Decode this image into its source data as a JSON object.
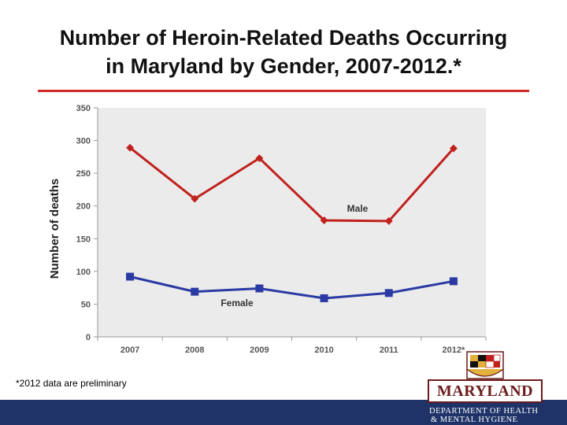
{
  "slide": {
    "title_line1": "Number of Heroin-Related Deaths Occurring",
    "title_line2": "in Maryland by Gender, 2007-2012.*",
    "footnote": "*2012 data are preliminary"
  },
  "logo": {
    "wordmark": "MARYLAND",
    "dept_line1": "DEPARTMENT OF HEALTH",
    "dept_line2": "& MENTAL HYGIENE",
    "colors": {
      "maroon": "#6b1a1a",
      "gold": "#e2b13c",
      "bar": "#1f3368"
    }
  },
  "chart_data": {
    "type": "line",
    "categories": [
      "2007",
      "2008",
      "2009",
      "2010",
      "2011",
      "2012*"
    ],
    "series": [
      {
        "name": "Male",
        "values": [
          289,
          211,
          273,
          178,
          177,
          288
        ],
        "color": "#c0211d",
        "marker": "diamond"
      },
      {
        "name": "Female",
        "values": [
          92,
          69,
          74,
          59,
          67,
          85
        ],
        "color": "#2b3aa3",
        "marker": "square"
      }
    ],
    "ylabel": "Number of deaths",
    "xlabel": "",
    "ylim": [
      0,
      350
    ],
    "yticks": [
      0,
      50,
      100,
      150,
      200,
      250,
      300,
      350
    ],
    "grid": false,
    "legend": "inline labels",
    "plot_background": "#ebebeb"
  }
}
